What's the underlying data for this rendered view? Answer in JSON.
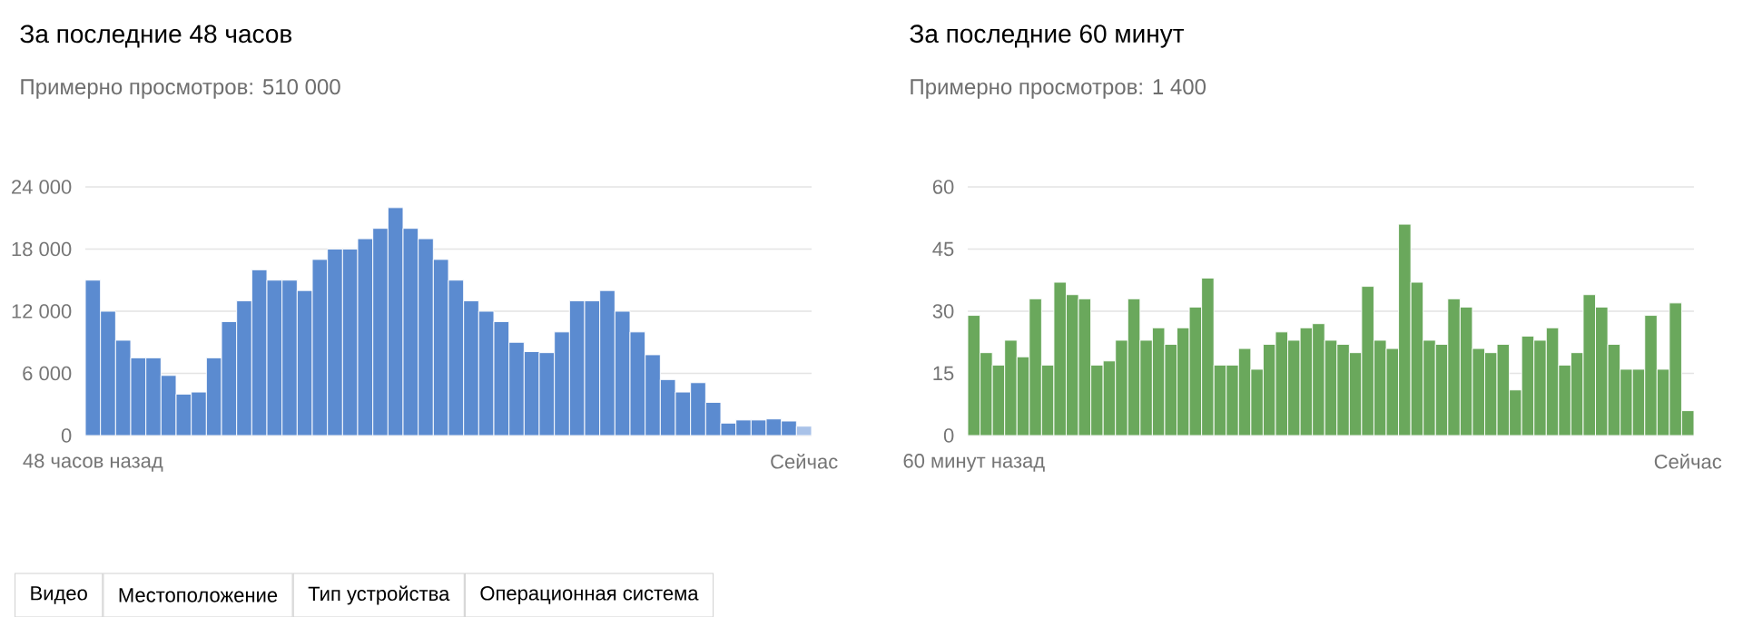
{
  "chart_data": [
    {
      "type": "bar",
      "title": "За последние 48 часов",
      "subtitle": "Примерно просмотров: 510 000",
      "categories": [
        "48 часов назад",
        null,
        null,
        null,
        null,
        null,
        null,
        null,
        null,
        null,
        null,
        null,
        null,
        null,
        null,
        null,
        null,
        null,
        null,
        null,
        null,
        null,
        null,
        null,
        null,
        null,
        null,
        null,
        null,
        null,
        null,
        null,
        null,
        null,
        null,
        null,
        null,
        null,
        null,
        null,
        null,
        null,
        null,
        null,
        null,
        null,
        null,
        "Сейчас"
      ],
      "values": [
        15000,
        12000,
        9200,
        7500,
        7500,
        5800,
        4000,
        4200,
        7500,
        11000,
        13000,
        16000,
        15000,
        15000,
        14000,
        17000,
        18000,
        18000,
        19000,
        20000,
        22000,
        20000,
        19000,
        17000,
        15000,
        13000,
        12000,
        11000,
        9000,
        8100,
        8000,
        10000,
        13000,
        13000,
        14000,
        12000,
        10000,
        7800,
        5400,
        4200,
        5100,
        3200,
        1200,
        1500,
        1500,
        1600,
        1400,
        900
      ],
      "colors": [
        "#5b8bd0",
        "#5b8bd0",
        "#5b8bd0",
        "#5b8bd0",
        "#5b8bd0",
        "#5b8bd0",
        "#5b8bd0",
        "#5b8bd0",
        "#5b8bd0",
        "#5b8bd0",
        "#5b8bd0",
        "#5b8bd0",
        "#5b8bd0",
        "#5b8bd0",
        "#5b8bd0",
        "#5b8bd0",
        "#5b8bd0",
        "#5b8bd0",
        "#5b8bd0",
        "#5b8bd0",
        "#5b8bd0",
        "#5b8bd0",
        "#5b8bd0",
        "#5b8bd0",
        "#5b8bd0",
        "#5b8bd0",
        "#5b8bd0",
        "#5b8bd0",
        "#5b8bd0",
        "#5b8bd0",
        "#5b8bd0",
        "#5b8bd0",
        "#5b8bd0",
        "#5b8bd0",
        "#5b8bd0",
        "#5b8bd0",
        "#5b8bd0",
        "#5b8bd0",
        "#5b8bd0",
        "#5b8bd0",
        "#5b8bd0",
        "#5b8bd0",
        "#5b8bd0",
        "#5b8bd0",
        "#5b8bd0",
        "#5b8bd0",
        "#5b8bd0",
        "#a9c2e8"
      ],
      "ylim": [
        0,
        24000
      ],
      "yticks": [
        0,
        {
          "value": 6000,
          "label": "6 000"
        },
        {
          "value": 12000,
          "label": "12 000"
        },
        {
          "value": 18000,
          "label": "18 000"
        },
        {
          "value": 24000,
          "label": "24 000"
        }
      ],
      "grid": "y"
    },
    {
      "type": "bar",
      "title": "За последние 60 минут",
      "subtitle": "Примерно просмотров: 1 400",
      "categories": [
        "60 минут назад",
        null,
        null,
        null,
        null,
        null,
        null,
        null,
        null,
        null,
        null,
        null,
        null,
        null,
        null,
        null,
        null,
        null,
        null,
        null,
        null,
        null,
        null,
        null,
        null,
        null,
        null,
        null,
        null,
        null,
        null,
        null,
        null,
        null,
        null,
        null,
        null,
        null,
        null,
        null,
        null,
        null,
        null,
        null,
        null,
        null,
        null,
        null,
        null,
        null,
        null,
        null,
        null,
        null,
        null,
        null,
        null,
        null,
        "Сейчас"
      ],
      "values": [
        29,
        20,
        17,
        23,
        19,
        33,
        17,
        37,
        34,
        33,
        17,
        18,
        23,
        33,
        23,
        26,
        22,
        26,
        31,
        38,
        17,
        17,
        21,
        16,
        22,
        25,
        23,
        26,
        27,
        23,
        22,
        20,
        36,
        23,
        21,
        51,
        37,
        23,
        22,
        33,
        31,
        21,
        20,
        22,
        11,
        24,
        23,
        26,
        17,
        20,
        34,
        31,
        22,
        16,
        16,
        29,
        16,
        32,
        6
      ],
      "color": "#6aa85c",
      "ylim": [
        0,
        60
      ],
      "yticks": [
        0,
        15,
        30,
        45,
        60
      ],
      "grid": "y"
    },
    {
      "type": "other",
      "annotations": [
        "Видео",
        "Местоположение",
        "Тип устройства",
        "Операционная система"
      ]
    }
  ]
}
